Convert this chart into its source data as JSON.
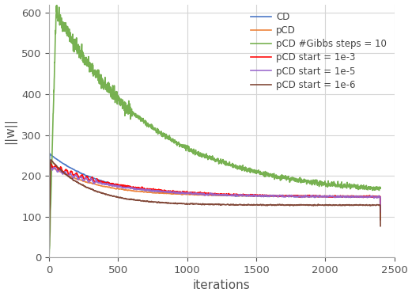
{
  "title": "",
  "xlabel": "iterations",
  "ylabel": "||w||",
  "xlim": [
    0,
    2500
  ],
  "ylim": [
    0,
    620
  ],
  "yticks": [
    0,
    100,
    200,
    300,
    400,
    500,
    600
  ],
  "xticks": [
    0,
    500,
    1000,
    1500,
    2000,
    2500
  ],
  "legend_entries": [
    "CD",
    "pCD",
    "pCD #Gibbs steps = 10",
    "pCD start = 1e-3",
    "pCD start = 1e-5",
    "pCD start = 1e-6"
  ],
  "colors": [
    "#4472c4",
    "#ed7d31",
    "#70ad47",
    "#ff0000",
    "#9966cc",
    "#7b3f2e"
  ],
  "line_widths": [
    1.2,
    1.2,
    1.2,
    1.2,
    1.2,
    1.2
  ],
  "n_points": 2400,
  "figsize": [
    5.21,
    3.74
  ],
  "dpi": 100,
  "grid_color": "#d5d5d5",
  "background": "#ffffff"
}
